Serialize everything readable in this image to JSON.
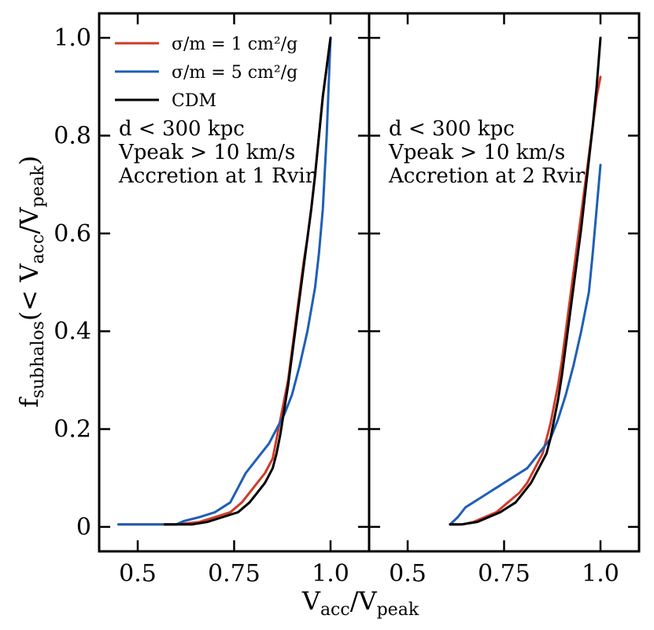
{
  "chart_data": [
    {
      "type": "line",
      "panel": "left",
      "xlim": [
        0.4,
        1.1
      ],
      "ylim": [
        -0.05,
        1.05
      ],
      "xticks": [
        0.5,
        0.75,
        1.0
      ],
      "xtick_labels": [
        "0.5",
        "0.75",
        "1.0"
      ],
      "yticks": [
        0,
        0.2,
        0.4,
        0.6,
        0.8,
        1.0
      ],
      "ytick_labels": [
        "0",
        "0.2",
        "0.4",
        "0.6",
        "0.8",
        "1.0"
      ],
      "annotations": [
        "d < 300 kpc",
        "Vpeak > 10 km/s",
        "Accretion at 1 Rvir"
      ],
      "legend_position": "top-left",
      "series": [
        {
          "name": "σ/m = 1 cm²/g",
          "color": "#d03b27",
          "x": [
            0.45,
            0.6,
            0.66,
            0.7,
            0.74,
            0.77,
            0.79,
            0.81,
            0.83,
            0.85,
            0.86,
            0.87,
            0.88,
            0.89,
            0.9,
            0.91,
            0.92,
            0.93,
            0.94,
            0.95,
            0.96,
            0.97,
            0.98,
            0.99,
            1.0
          ],
          "y": [
            0.005,
            0.005,
            0.01,
            0.02,
            0.03,
            0.05,
            0.07,
            0.09,
            0.11,
            0.14,
            0.18,
            0.22,
            0.26,
            0.3,
            0.36,
            0.42,
            0.48,
            0.54,
            0.59,
            0.65,
            0.72,
            0.8,
            0.88,
            0.94,
            1.0
          ]
        },
        {
          "name": "σ/m = 5 cm²/g",
          "color": "#1f5fb5",
          "x": [
            0.45,
            0.6,
            0.62,
            0.66,
            0.7,
            0.74,
            0.76,
            0.78,
            0.8,
            0.82,
            0.84,
            0.86,
            0.88,
            0.9,
            0.92,
            0.94,
            0.96,
            0.97,
            0.98,
            0.99,
            1.0
          ],
          "y": [
            0.005,
            0.005,
            0.012,
            0.02,
            0.03,
            0.05,
            0.08,
            0.11,
            0.13,
            0.15,
            0.17,
            0.2,
            0.23,
            0.27,
            0.33,
            0.4,
            0.49,
            0.56,
            0.65,
            0.8,
            1.0
          ]
        },
        {
          "name": "CDM",
          "color": "#000000",
          "x": [
            0.57,
            0.64,
            0.68,
            0.72,
            0.76,
            0.79,
            0.81,
            0.83,
            0.85,
            0.86,
            0.87,
            0.88,
            0.89,
            0.9,
            0.91,
            0.92,
            0.93,
            0.94,
            0.95,
            0.96,
            0.97,
            0.98,
            0.99,
            1.0
          ],
          "y": [
            0.005,
            0.005,
            0.01,
            0.02,
            0.03,
            0.05,
            0.07,
            0.09,
            0.12,
            0.15,
            0.19,
            0.24,
            0.29,
            0.35,
            0.41,
            0.47,
            0.53,
            0.59,
            0.65,
            0.72,
            0.8,
            0.88,
            0.94,
            1.0
          ]
        }
      ]
    },
    {
      "type": "line",
      "panel": "right",
      "xlim": [
        0.4,
        1.1
      ],
      "ylim": [
        -0.05,
        1.05
      ],
      "xticks": [
        0.5,
        0.75,
        1.0
      ],
      "xtick_labels": [
        "0.5",
        "0.75",
        "1.0"
      ],
      "yticks": [
        0,
        0.2,
        0.4,
        0.6,
        0.8,
        1.0
      ],
      "annotations": [
        "d < 300 kpc",
        "Vpeak > 10 km/s",
        "Accretion at 2 Rvir"
      ],
      "series": [
        {
          "name": "σ/m = 1 cm²/g",
          "color": "#d03b27",
          "x": [
            0.61,
            0.64,
            0.67,
            0.7,
            0.73,
            0.76,
            0.79,
            0.81,
            0.83,
            0.85,
            0.86,
            0.87,
            0.88,
            0.89,
            0.9,
            0.91,
            0.92,
            0.93,
            0.94,
            0.95,
            0.96,
            0.97,
            0.98,
            0.99,
            1.0
          ],
          "y": [
            0.005,
            0.005,
            0.01,
            0.02,
            0.03,
            0.05,
            0.07,
            0.09,
            0.12,
            0.15,
            0.18,
            0.21,
            0.25,
            0.29,
            0.34,
            0.4,
            0.46,
            0.52,
            0.58,
            0.64,
            0.7,
            0.76,
            0.82,
            0.88,
            0.92
          ]
        },
        {
          "name": "σ/m = 5 cm²/g",
          "color": "#1f5fb5",
          "x": [
            0.61,
            0.63,
            0.65,
            0.67,
            0.69,
            0.71,
            0.73,
            0.75,
            0.77,
            0.79,
            0.81,
            0.83,
            0.85,
            0.87,
            0.89,
            0.91,
            0.93,
            0.95,
            0.97,
            0.98,
            0.99,
            1.0
          ],
          "y": [
            0.005,
            0.02,
            0.04,
            0.05,
            0.06,
            0.07,
            0.08,
            0.09,
            0.1,
            0.11,
            0.12,
            0.14,
            0.16,
            0.18,
            0.22,
            0.27,
            0.33,
            0.4,
            0.48,
            0.56,
            0.65,
            0.74
          ]
        },
        {
          "name": "CDM",
          "color": "#000000",
          "x": [
            0.61,
            0.64,
            0.68,
            0.71,
            0.74,
            0.76,
            0.78,
            0.8,
            0.82,
            0.84,
            0.86,
            0.87,
            0.88,
            0.89,
            0.9,
            0.91,
            0.92,
            0.93,
            0.94,
            0.95,
            0.96,
            0.97,
            0.98,
            0.99,
            1.0
          ],
          "y": [
            0.005,
            0.005,
            0.01,
            0.02,
            0.03,
            0.04,
            0.05,
            0.07,
            0.09,
            0.12,
            0.15,
            0.18,
            0.22,
            0.26,
            0.31,
            0.37,
            0.43,
            0.49,
            0.55,
            0.61,
            0.68,
            0.75,
            0.82,
            0.9,
            1.0
          ]
        }
      ]
    }
  ],
  "axis_labels": {
    "x_main": "V",
    "x_sub1": "acc",
    "x_mid": "/V",
    "x_sub2": "peak",
    "y_main": "f",
    "y_sub1": "subhalos",
    "y_mid": "(< V",
    "y_sub2": "acc",
    "y_mid2": "/V",
    "y_sub3": "peak",
    "y_end": ")"
  }
}
